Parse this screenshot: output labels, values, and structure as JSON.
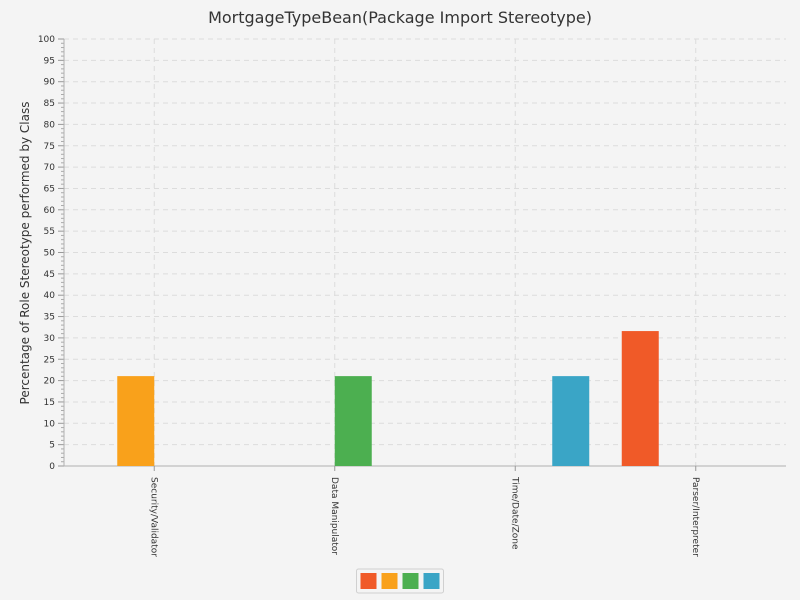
{
  "chart_data": {
    "type": "bar",
    "title": "MortgageTypeBean(Package Import Stereotype)",
    "xlabel": "",
    "ylabel": "Percentage of Role Stereotype performed by Class",
    "ylim": [
      0,
      100
    ],
    "ytick_step": 5,
    "grid": true,
    "legend_placement": "bottom-center",
    "categories": [
      "Security/Validator",
      "Data Manipulator",
      "Time/Date/Zone",
      "Parser/Interpreter"
    ],
    "series": [
      {
        "color": "#f05a28",
        "values": [
          0,
          0,
          0,
          31.6
        ]
      },
      {
        "color": "#f9a11b",
        "values": [
          21.05,
          0,
          0,
          0
        ]
      },
      {
        "color": "#4caf50",
        "values": [
          0,
          21.05,
          0,
          0
        ]
      },
      {
        "color": "#3aa5c6",
        "values": [
          0,
          0,
          21.05,
          0
        ]
      }
    ],
    "legend_swatch_colors": [
      "#f05a28",
      "#f9a11b",
      "#4caf50",
      "#3aa5c6"
    ]
  }
}
